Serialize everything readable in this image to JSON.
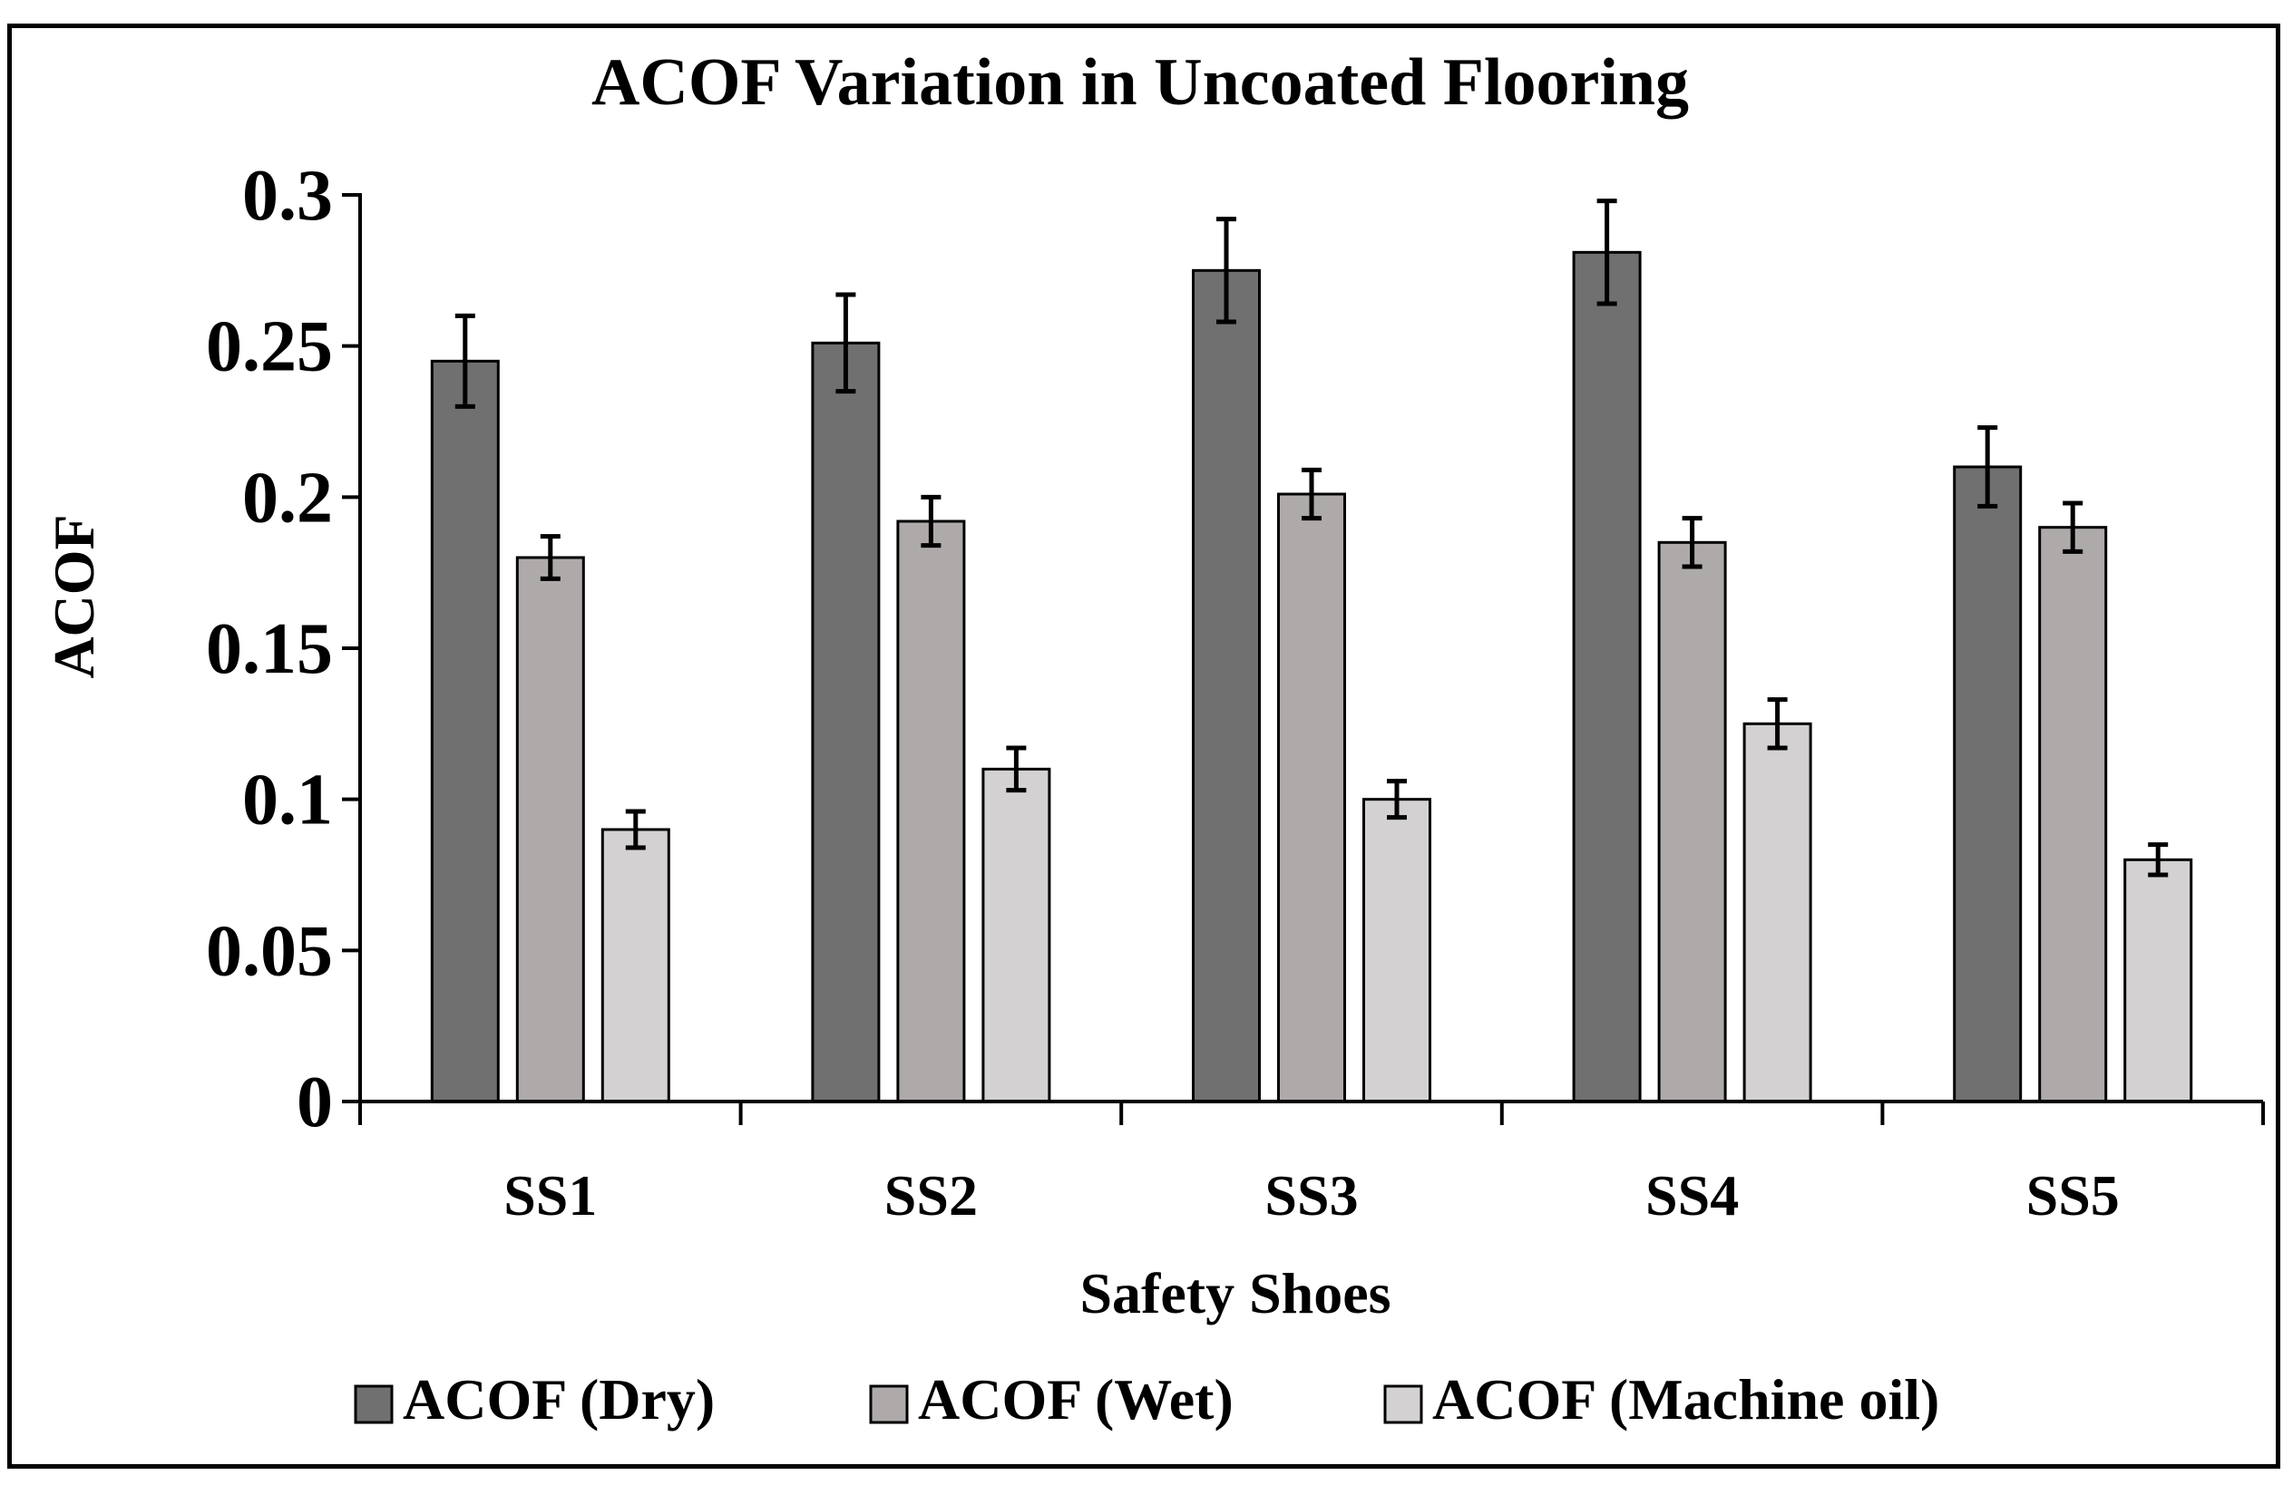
{
  "chart_data": {
    "type": "bar",
    "title": "ACOF Variation in Uncoated Flooring",
    "xlabel": "Safety Shoes",
    "ylabel": "ACOF",
    "categories": [
      "SS1",
      "SS2",
      "SS3",
      "SS4",
      "SS5"
    ],
    "ylim": [
      0,
      0.3
    ],
    "yticks": [
      0,
      0.05,
      0.1,
      0.15,
      0.2,
      0.25,
      0.3
    ],
    "ytick_labels": [
      "0",
      "0.05",
      "0.1",
      "0.15",
      "0.2",
      "0.25",
      "0.3"
    ],
    "grid": false,
    "legend_position": "bottom",
    "series": [
      {
        "name": "ACOF (Dry)",
        "color": "#707070",
        "values": [
          0.245,
          0.251,
          0.275,
          0.281,
          0.21
        ],
        "errors": [
          0.015,
          0.016,
          0.017,
          0.017,
          0.013
        ]
      },
      {
        "name": "ACOF (Wet)",
        "color": "#aeaaaa",
        "values": [
          0.18,
          0.192,
          0.201,
          0.185,
          0.19
        ],
        "errors": [
          0.007,
          0.008,
          0.008,
          0.008,
          0.008
        ]
      },
      {
        "name": "ACOF (Machine oil)",
        "color": "#d3d1d2",
        "values": [
          0.09,
          0.11,
          0.1,
          0.125,
          0.08
        ],
        "errors": [
          0.006,
          0.007,
          0.006,
          0.008,
          0.005
        ]
      }
    ]
  }
}
